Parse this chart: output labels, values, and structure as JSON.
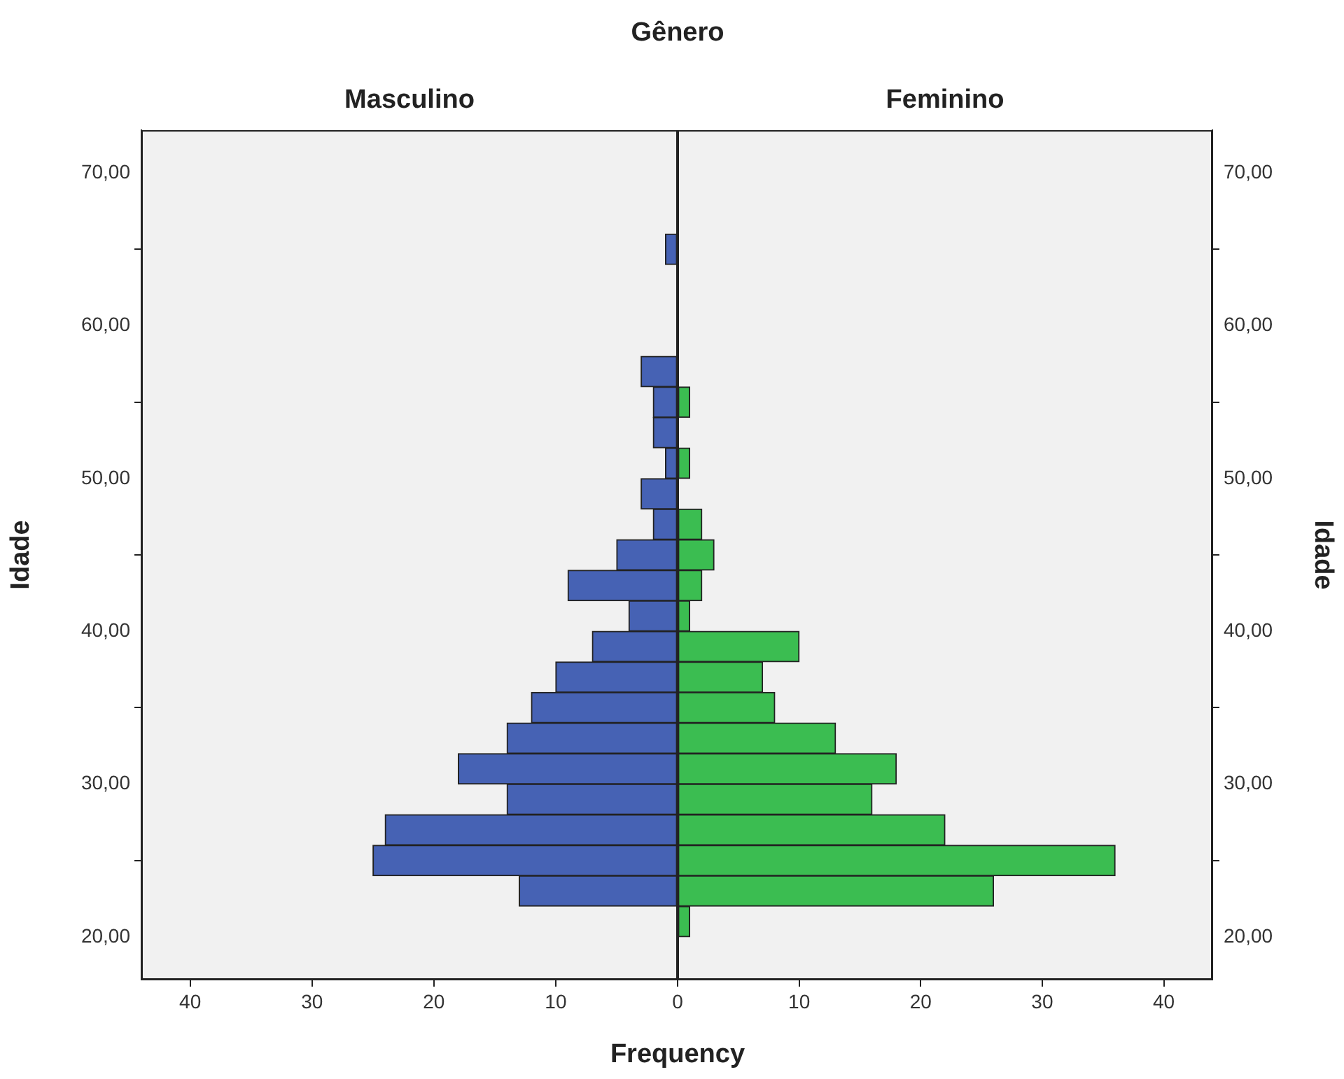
{
  "chart_data": [
    {
      "type": "histogram",
      "orientation": "horizontal",
      "title": "Gênero",
      "subtitle": "Masculino",
      "xlabel": "Frequency",
      "ylabel": "Idade",
      "color": "#4662b4",
      "bins": [
        20,
        22,
        24,
        26,
        28,
        30,
        32,
        34,
        36,
        38,
        40,
        42,
        44,
        46,
        48,
        50,
        52,
        54,
        56,
        58,
        60,
        62,
        64,
        66
      ],
      "values": [
        0,
        13,
        25,
        24,
        14,
        18,
        14,
        12,
        10,
        7,
        4,
        9,
        5,
        2,
        3,
        1,
        2,
        2,
        3,
        0,
        0,
        0,
        1
      ],
      "xlim": [
        44,
        0
      ],
      "xticks": [
        40,
        30,
        20,
        10,
        0
      ],
      "ylim": [
        17.2,
        72.8
      ],
      "yticks": [
        {
          "value": 20,
          "label": "20,00"
        },
        {
          "value": 30,
          "label": "30,00"
        },
        {
          "value": 40,
          "label": "40,00"
        },
        {
          "value": 50,
          "label": "50,00"
        },
        {
          "value": 60,
          "label": "60,00"
        },
        {
          "value": 70,
          "label": "70,00"
        }
      ],
      "grid": false,
      "legend": false
    },
    {
      "type": "histogram",
      "orientation": "horizontal",
      "subtitle": "Feminino",
      "ylabel": "Idade",
      "color": "#3bbd51",
      "bins": [
        20,
        22,
        24,
        26,
        28,
        30,
        32,
        34,
        36,
        38,
        40,
        42,
        44,
        46,
        48,
        50,
        52,
        54,
        56,
        58,
        60,
        62,
        64,
        66
      ],
      "values": [
        1,
        26,
        36,
        22,
        16,
        18,
        13,
        8,
        7,
        10,
        1,
        2,
        3,
        2,
        0,
        1,
        0,
        1,
        0,
        0,
        0,
        0,
        0
      ],
      "xlim": [
        0,
        44
      ],
      "xticks": [
        {
          "value": 0,
          "label": null
        },
        10,
        20,
        30,
        40
      ],
      "ylim": [
        17.2,
        72.8
      ],
      "yticks": [
        {
          "value": 20,
          "label": "20,00"
        },
        {
          "value": 30,
          "label": "30,00"
        },
        {
          "value": 40,
          "label": "40,00"
        },
        {
          "value": 50,
          "label": "50,00"
        },
        {
          "value": 60,
          "label": "60,00"
        },
        {
          "value": 70,
          "label": "70,00"
        }
      ],
      "grid": false,
      "legend": false
    }
  ]
}
